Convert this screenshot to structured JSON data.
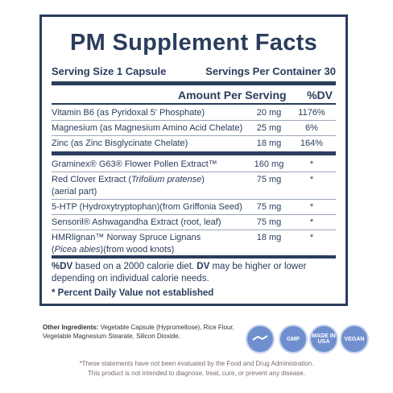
{
  "title": "PM Supplement Facts",
  "serving_size": "Serving Size 1 Capsule",
  "servings_per_container": "Servings Per Container 30",
  "header": {
    "amount": "Amount Per Serving",
    "dv": "%DV"
  },
  "rows_dv": [
    {
      "name": [
        [
          "Vitamin B6 (as Pyridoxal 5' Phosphate)"
        ]
      ],
      "amount": "20 mg",
      "dv": "1176%"
    },
    {
      "name": [
        [
          "Magnesium (as Magnesium Amino Acid Chelate)"
        ]
      ],
      "amount": "25 mg",
      "dv": "6%"
    },
    {
      "name": [
        [
          "Zinc (as Zinc Bisglycinate Chelate)"
        ]
      ],
      "amount": "18 mg",
      "dv": "164%"
    }
  ],
  "rows_other": [
    {
      "name": [
        [
          "Graminex® G63® Flower Pollen Extract™"
        ]
      ],
      "amount": "160 mg",
      "dv": "*"
    },
    {
      "name": [
        [
          "Red Clover Extract (",
          "Trifolium pratense",
          ")"
        ],
        [
          "(aerial part)"
        ]
      ],
      "amount": "75 mg",
      "dv": "*"
    },
    {
      "name": [
        [
          "5-HTP (Hydroxytryptophan)(from Griffonia Seed)"
        ]
      ],
      "amount": "75 mg",
      "dv": "*"
    },
    {
      "name": [
        [
          "Sensoril® Ashwagandha Extract (root, leaf)"
        ]
      ],
      "amount": "75 mg",
      "dv": "*"
    },
    {
      "name": [
        [
          "HMRlignan™ Norway Spruce Lignans"
        ],
        [
          "(",
          "Picea abies",
          ")(from wood knots)"
        ]
      ],
      "amount": "18 mg",
      "dv": "*"
    }
  ],
  "footnote": [
    "%DV",
    " based on a 2000 calorie diet. ",
    "DV",
    " may be higher or lower depending on individual calorie needs."
  ],
  "footnote_star": "* Percent Daily Value not established",
  "other_ingredients": {
    "label": "Other Ingredients:",
    "text": " Vegetable Capsule (Hypromellose), Rice Flour, Vegetable Magnesium Stearate, Silicon Dioxide."
  },
  "badges": [
    [
      "GMP"
    ],
    [
      "MADE IN",
      "USA"
    ],
    [
      "VEGAN"
    ]
  ],
  "disclaimer": [
    "*These statements have not been evaluated by the Food and Drug Administration.",
    "This product is not intended to diagnose, treat, cure, or prevent any disease."
  ]
}
